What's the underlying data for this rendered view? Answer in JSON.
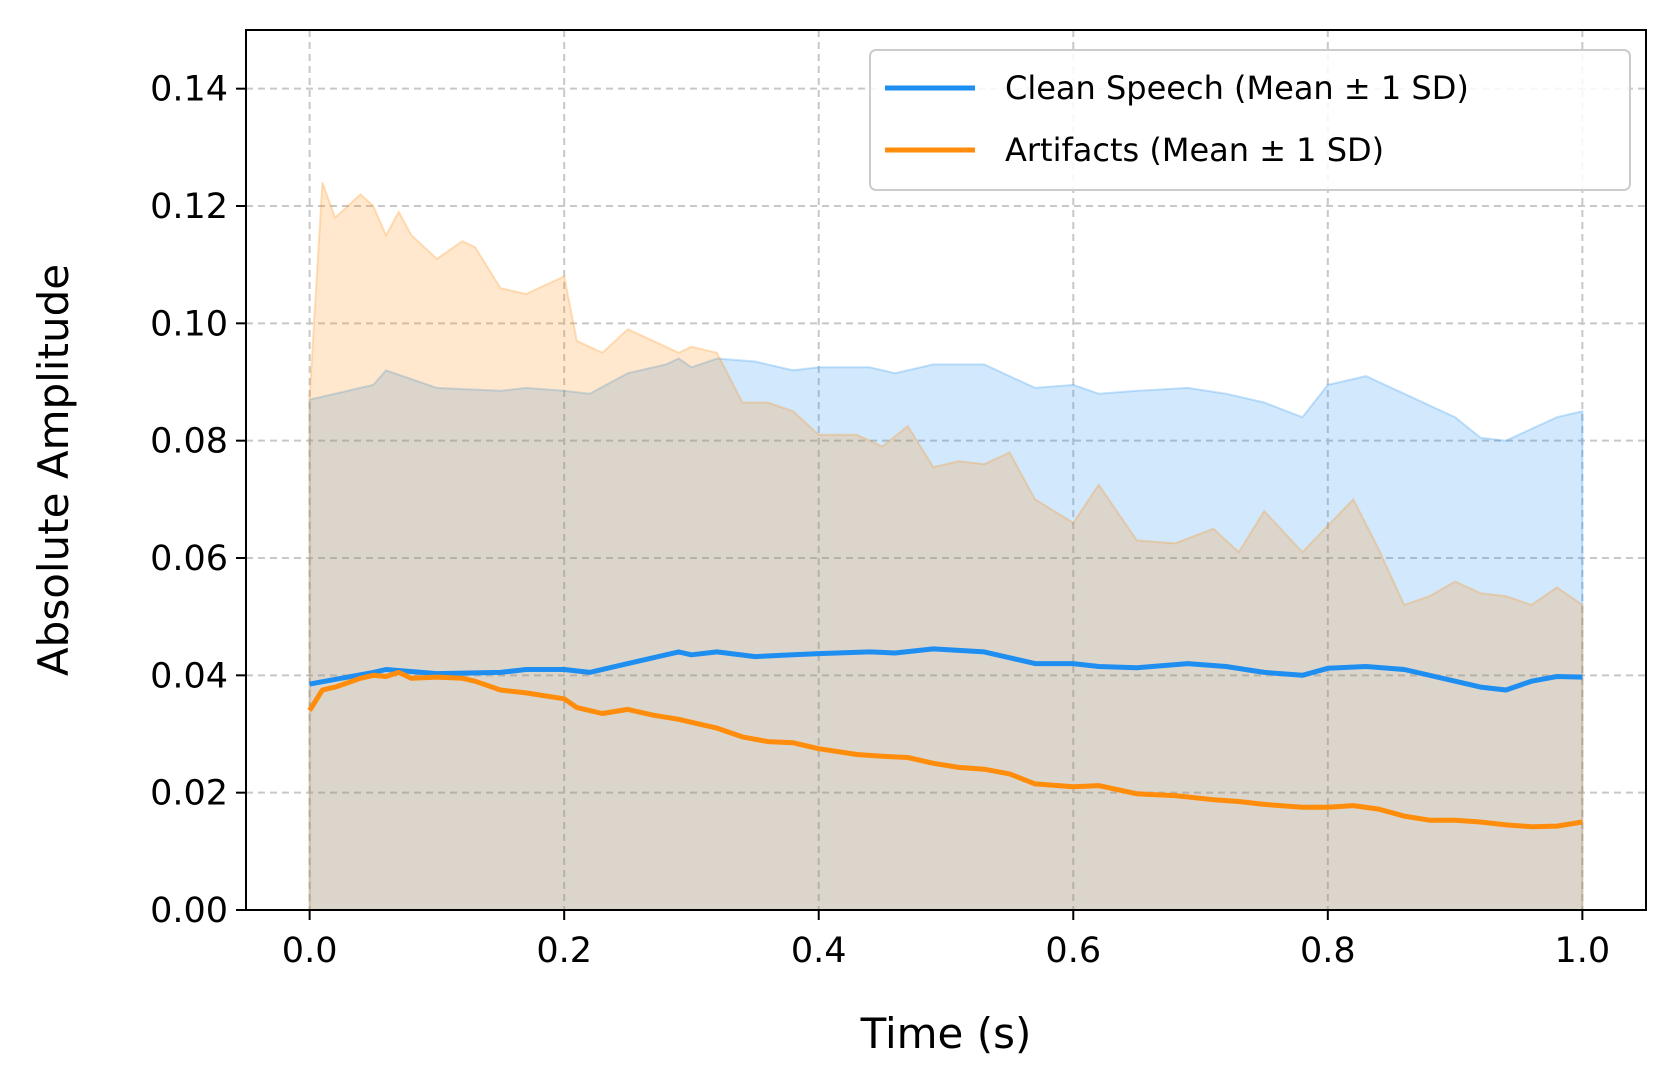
{
  "chart_data": {
    "type": "line",
    "title": "",
    "xlabel": "Time (s)",
    "ylabel": "Absolute Amplitude",
    "xlim": [
      -0.05,
      1.05
    ],
    "ylim": [
      0.0,
      0.15
    ],
    "x_ticks": [
      "0.0",
      "0.2",
      "0.4",
      "0.6",
      "0.8",
      "1.0"
    ],
    "y_ticks": [
      "0.00",
      "0.02",
      "0.04",
      "0.06",
      "0.08",
      "0.10",
      "0.12",
      "0.14"
    ],
    "grid": true,
    "legend_position": "top-right",
    "series": [
      {
        "name": "Clean Speech (Mean ± 1 SD)",
        "color": "#1f8ef1",
        "x": [
          0.0,
          0.05,
          0.06,
          0.1,
          0.15,
          0.17,
          0.2,
          0.22,
          0.25,
          0.28,
          0.29,
          0.3,
          0.32,
          0.35,
          0.38,
          0.4,
          0.44,
          0.46,
          0.49,
          0.53,
          0.57,
          0.6,
          0.62,
          0.65,
          0.69,
          0.72,
          0.75,
          0.78,
          0.8,
          0.83,
          0.86,
          0.9,
          0.92,
          0.94,
          0.96,
          0.98,
          1.0
        ],
        "mean": [
          0.0385,
          0.0405,
          0.041,
          0.0403,
          0.0405,
          0.041,
          0.041,
          0.0405,
          0.042,
          0.0435,
          0.044,
          0.0435,
          0.044,
          0.0432,
          0.0435,
          0.0437,
          0.044,
          0.0438,
          0.0445,
          0.044,
          0.042,
          0.042,
          0.0415,
          0.0413,
          0.042,
          0.0415,
          0.0405,
          0.04,
          0.0412,
          0.0415,
          0.041,
          0.039,
          0.038,
          0.0375,
          0.039,
          0.0398,
          0.0397
        ],
        "upper": [
          0.087,
          0.0895,
          0.092,
          0.089,
          0.0885,
          0.089,
          0.0885,
          0.088,
          0.0915,
          0.093,
          0.094,
          0.0925,
          0.094,
          0.0935,
          0.092,
          0.0925,
          0.0925,
          0.0915,
          0.093,
          0.093,
          0.089,
          0.0895,
          0.088,
          0.0885,
          0.089,
          0.088,
          0.0865,
          0.084,
          0.0895,
          0.091,
          0.088,
          0.084,
          0.0805,
          0.08,
          0.082,
          0.084,
          0.085
        ],
        "lower": [
          0,
          0,
          0,
          0,
          0,
          0,
          0,
          0,
          0,
          0,
          0,
          0,
          0,
          0,
          0,
          0,
          0,
          0,
          0,
          0,
          0,
          0,
          0,
          0,
          0,
          0,
          0,
          0,
          0,
          0,
          0,
          0,
          0,
          0,
          0,
          0,
          0
        ]
      },
      {
        "name": "Artifacts (Mean ± 1 SD)",
        "color": "#ff8c0a",
        "x": [
          0.0,
          0.01,
          0.02,
          0.04,
          0.05,
          0.06,
          0.07,
          0.08,
          0.1,
          0.12,
          0.13,
          0.15,
          0.17,
          0.2,
          0.21,
          0.23,
          0.25,
          0.27,
          0.29,
          0.3,
          0.32,
          0.34,
          0.36,
          0.38,
          0.4,
          0.43,
          0.45,
          0.47,
          0.49,
          0.51,
          0.53,
          0.55,
          0.57,
          0.6,
          0.62,
          0.65,
          0.68,
          0.71,
          0.73,
          0.75,
          0.78,
          0.8,
          0.82,
          0.84,
          0.86,
          0.88,
          0.9,
          0.92,
          0.94,
          0.96,
          0.98,
          1.0
        ],
        "mean": [
          0.034,
          0.0375,
          0.038,
          0.0395,
          0.04,
          0.0398,
          0.0405,
          0.0395,
          0.0397,
          0.0395,
          0.039,
          0.0375,
          0.037,
          0.036,
          0.0345,
          0.0335,
          0.0342,
          0.0332,
          0.0325,
          0.032,
          0.031,
          0.0295,
          0.0287,
          0.0285,
          0.0275,
          0.0265,
          0.0262,
          0.026,
          0.025,
          0.0243,
          0.024,
          0.0232,
          0.0215,
          0.021,
          0.0212,
          0.0198,
          0.0195,
          0.0188,
          0.0185,
          0.018,
          0.0175,
          0.0175,
          0.0178,
          0.0172,
          0.016,
          0.0153,
          0.0153,
          0.015,
          0.0145,
          0.0142,
          0.0143,
          0.015
        ],
        "upper": [
          0.0875,
          0.124,
          0.118,
          0.122,
          0.12,
          0.115,
          0.119,
          0.115,
          0.111,
          0.114,
          0.113,
          0.106,
          0.105,
          0.108,
          0.097,
          0.095,
          0.099,
          0.097,
          0.095,
          0.096,
          0.095,
          0.0865,
          0.0865,
          0.085,
          0.081,
          0.081,
          0.079,
          0.0825,
          0.0755,
          0.0765,
          0.076,
          0.078,
          0.07,
          0.066,
          0.0725,
          0.063,
          0.0625,
          0.065,
          0.061,
          0.068,
          0.061,
          0.0655,
          0.07,
          0.0615,
          0.052,
          0.0535,
          0.056,
          0.054,
          0.0535,
          0.052,
          0.055,
          0.052
        ],
        "lower": [
          0,
          0,
          0,
          0,
          0,
          0,
          0,
          0,
          0,
          0,
          0,
          0,
          0,
          0,
          0,
          0,
          0,
          0,
          0,
          0,
          0,
          0,
          0,
          0,
          0,
          0,
          0,
          0,
          0,
          0,
          0,
          0,
          0,
          0,
          0,
          0,
          0,
          0,
          0,
          0,
          0,
          0,
          0,
          0,
          0,
          0,
          0,
          0,
          0,
          0,
          0,
          0
        ]
      }
    ]
  }
}
